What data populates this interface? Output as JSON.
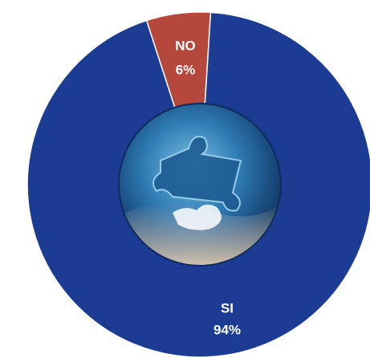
{
  "chart_data": {
    "type": "donut",
    "categories": [
      "NO",
      "SI"
    ],
    "values": [
      6,
      94
    ],
    "value_labels": [
      "6%",
      "94%"
    ],
    "colors": [
      "#b5473c",
      "#1b3c92"
    ]
  }
}
